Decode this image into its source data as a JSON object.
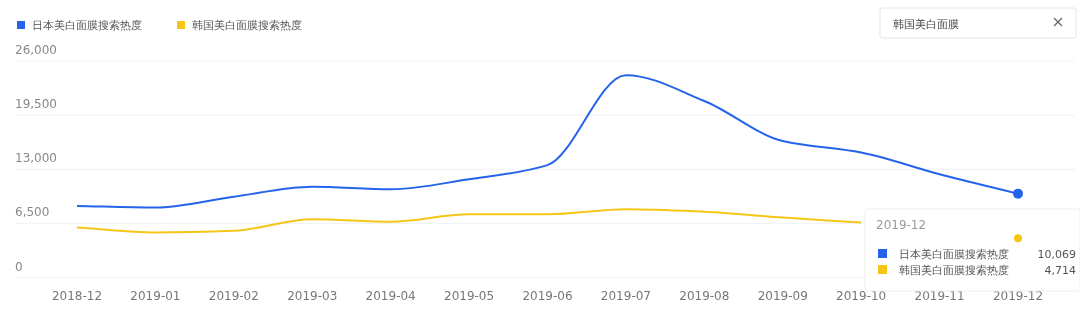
{
  "chart_data": {
    "type": "line",
    "categories": [
      "2018-12",
      "2019-01",
      "2019-02",
      "2019-03",
      "2019-04",
      "2019-05",
      "2019-06",
      "2019-07",
      "2019-08",
      "2019-09",
      "2019-10",
      "2019-11",
      "2019-12"
    ],
    "series": [
      {
        "name": "日本美白面膜搜索热度",
        "color": "#2563eb",
        "values": [
          8600,
          8400,
          9700,
          10900,
          10600,
          11800,
          13500,
          24300,
          21200,
          16400,
          15000,
          12400,
          10069
        ]
      },
      {
        "name": "韩国美白面膜搜索热度",
        "color": "#f5c518",
        "values": [
          6000,
          5400,
          5600,
          7000,
          6700,
          7600,
          7600,
          8200,
          7900,
          7200,
          6600,
          null,
          4714
        ]
      }
    ],
    "ylim": [
      0,
      26000
    ],
    "yticks": [
      {
        "value": 0,
        "label": "0"
      },
      {
        "value": 6500,
        "label": "6,500"
      },
      {
        "value": 13000,
        "label": "13,000"
      },
      {
        "value": 19500,
        "label": "19,500"
      },
      {
        "value": 26000,
        "label": "26,000"
      }
    ],
    "grid": "y",
    "legend": "top left",
    "marker": "none",
    "line_style": "solid",
    "annotations": [
      "韩国美白面膜",
      "2019-12",
      "日本美白面膜搜索热度",
      "韩国美白面膜搜索热度",
      "10,069",
      "4,714"
    ]
  }
}
